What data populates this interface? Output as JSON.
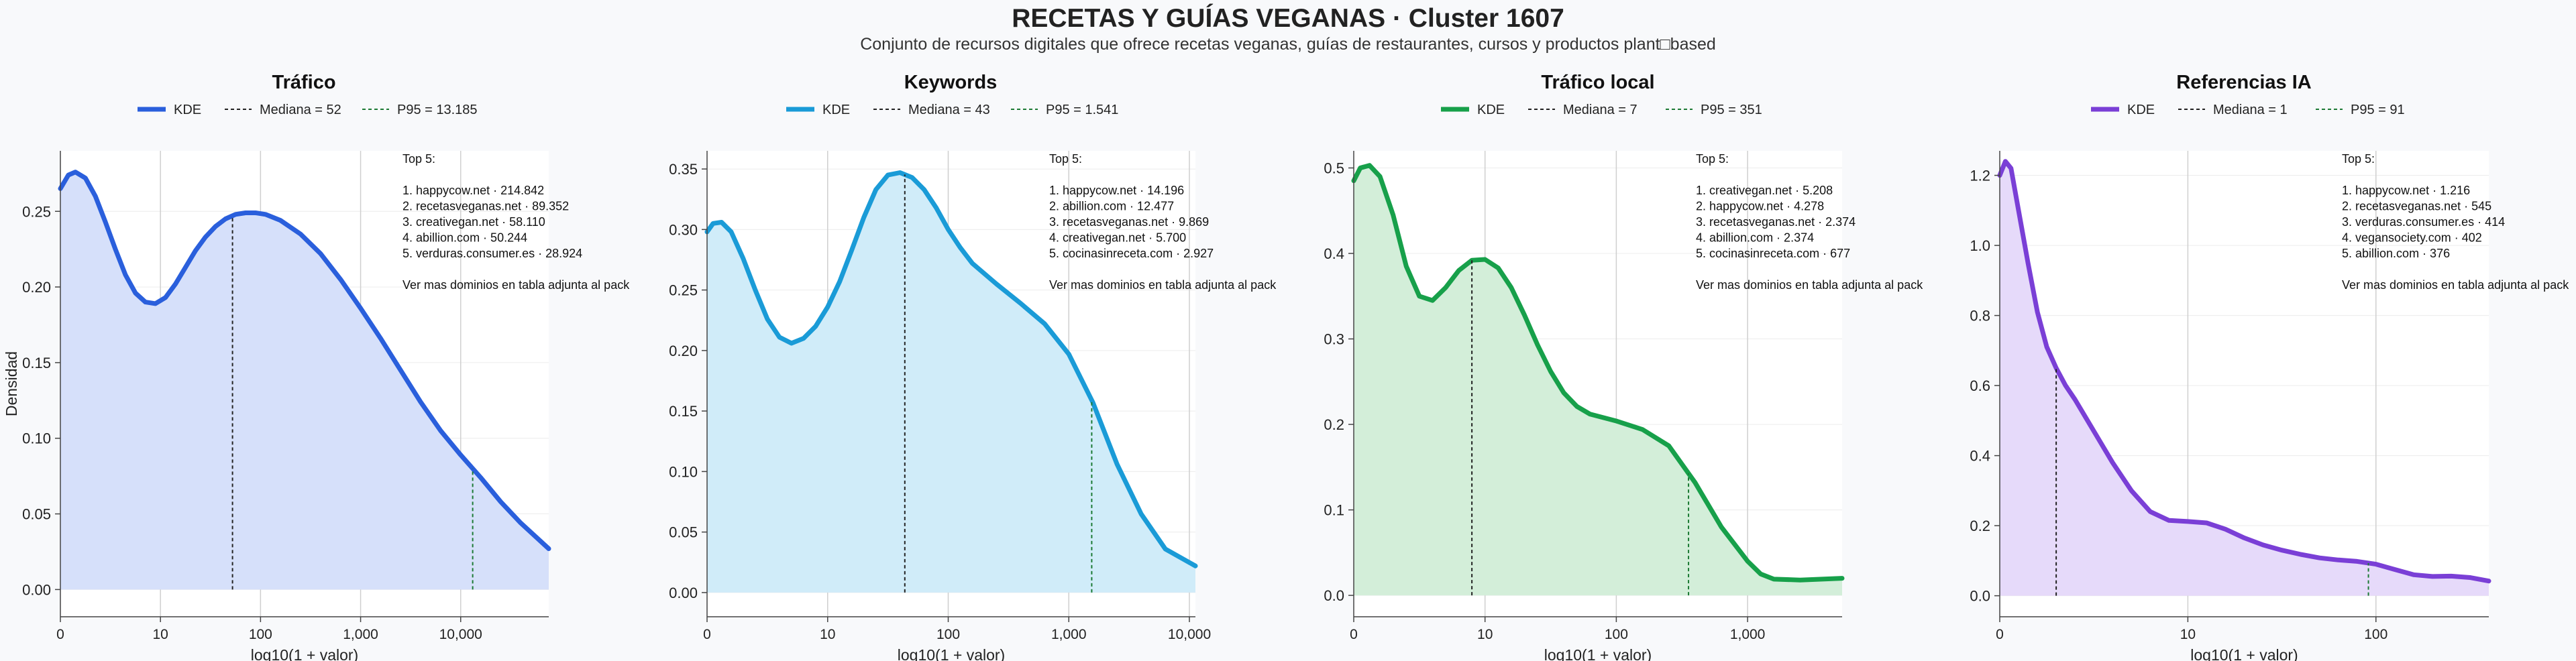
{
  "page": {
    "title": "RECETAS Y GUÍAS VEGANAS · Cluster 1607",
    "subtitle": "Conjunto de recursos digitales que ofrece recetas veganas, guías de restaurantes, cursos y productos plant□based"
  },
  "chart_data": [
    {
      "type": "area",
      "title": "Tráfico",
      "xlabel": "log10(1 + valor)",
      "ylabel": "Densidad",
      "x_scale": "log10(1+x)",
      "xlim": [
        0,
        4.88
      ],
      "ylim": [
        -0.018,
        0.29
      ],
      "xticks": [
        0,
        1,
        2,
        3,
        4
      ],
      "xtick_labels": [
        "0",
        "10",
        "100",
        "1,000",
        "10,000"
      ],
      "yticks": [
        0,
        0.05,
        0.1,
        0.15,
        0.2,
        0.25
      ],
      "ytick_labels": [
        "0.00",
        "0.05",
        "0.10",
        "0.15",
        "0.20",
        "0.25"
      ],
      "legend": {
        "position": "top",
        "kde": "KDE",
        "median": "Mediana = 52",
        "p95": "P95 = 13.185"
      },
      "color": "#2a5fdc",
      "fill": "#d6e0fa",
      "median_x": 1.72,
      "p95_x": 4.12,
      "series": [
        {
          "name": "KDE",
          "x": [
            0,
            0.08,
            0.15,
            0.25,
            0.35,
            0.45,
            0.55,
            0.65,
            0.75,
            0.85,
            0.95,
            1.05,
            1.15,
            1.25,
            1.35,
            1.45,
            1.55,
            1.65,
            1.75,
            1.85,
            1.95,
            2.05,
            2.2,
            2.4,
            2.6,
            2.8,
            3.0,
            3.2,
            3.4,
            3.6,
            3.8,
            4.0,
            4.2,
            4.4,
            4.6,
            4.88
          ],
          "y": [
            0.265,
            0.274,
            0.276,
            0.272,
            0.26,
            0.243,
            0.225,
            0.208,
            0.196,
            0.19,
            0.189,
            0.193,
            0.202,
            0.213,
            0.224,
            0.233,
            0.24,
            0.245,
            0.248,
            0.249,
            0.249,
            0.248,
            0.244,
            0.235,
            0.222,
            0.205,
            0.186,
            0.166,
            0.145,
            0.124,
            0.105,
            0.089,
            0.074,
            0.058,
            0.044,
            0.027
          ]
        }
      ],
      "annotation": [
        "Top 5:",
        "",
        "1. happycow.net · 214.842",
        "2. recetasveganas.net · 89.352",
        "3. creativegan.net · 58.110",
        "4. abillion.com · 50.244",
        "5. verduras.consumer.es · 28.924",
        "",
        "Ver mas dominios en tabla adjunta al pack"
      ]
    },
    {
      "type": "area",
      "title": "Keywords",
      "xlabel": "log10(1 + valor)",
      "ylabel": "",
      "x_scale": "log10(1+x)",
      "xlim": [
        0,
        4.05
      ],
      "ylim": [
        -0.02,
        0.365
      ],
      "xticks": [
        0,
        1,
        2,
        3,
        4
      ],
      "xtick_labels": [
        "0",
        "10",
        "100",
        "1,000",
        "10,000"
      ],
      "yticks": [
        0,
        0.05,
        0.1,
        0.15,
        0.2,
        0.25,
        0.3,
        0.35
      ],
      "ytick_labels": [
        "0.00",
        "0.05",
        "0.10",
        "0.15",
        "0.20",
        "0.25",
        "0.30",
        "0.35"
      ],
      "legend": {
        "position": "top",
        "kde": "KDE",
        "median": "Mediana = 43",
        "p95": "P95 = 1.541"
      },
      "color": "#1a9bd7",
      "fill": "#d0ecf9",
      "median_x": 1.64,
      "p95_x": 3.19,
      "series": [
        {
          "name": "KDE",
          "x": [
            0,
            0.05,
            0.12,
            0.2,
            0.3,
            0.4,
            0.5,
            0.6,
            0.7,
            0.8,
            0.9,
            1.0,
            1.1,
            1.2,
            1.3,
            1.4,
            1.5,
            1.6,
            1.7,
            1.8,
            1.9,
            2.0,
            2.1,
            2.2,
            2.4,
            2.6,
            2.8,
            3.0,
            3.2,
            3.4,
            3.6,
            3.8,
            4.05
          ],
          "y": [
            0.298,
            0.305,
            0.306,
            0.298,
            0.276,
            0.25,
            0.226,
            0.211,
            0.206,
            0.21,
            0.22,
            0.236,
            0.257,
            0.283,
            0.31,
            0.333,
            0.345,
            0.347,
            0.343,
            0.333,
            0.318,
            0.3,
            0.285,
            0.272,
            0.255,
            0.239,
            0.222,
            0.197,
            0.157,
            0.106,
            0.065,
            0.036,
            0.022
          ]
        }
      ],
      "annotation": [
        "Top 5:",
        "",
        "1. happycow.net · 14.196",
        "2. abillion.com · 12.477",
        "3. recetasveganas.net · 9.869",
        "4. creativegan.net · 5.700",
        "5. cocinasinreceta.com · 2.927",
        "",
        "Ver mas dominios en tabla adjunta al pack"
      ]
    },
    {
      "type": "area",
      "title": "Tráfico local",
      "xlabel": "log10(1 + valor)",
      "ylabel": "",
      "x_scale": "log10(1+x)",
      "xlim": [
        0,
        3.72
      ],
      "ylim": [
        -0.025,
        0.52
      ],
      "xticks": [
        0,
        1,
        2,
        3
      ],
      "xtick_labels": [
        "0",
        "10",
        "100",
        "1,000"
      ],
      "yticks": [
        0,
        0.1,
        0.2,
        0.3,
        0.4,
        0.5
      ],
      "ytick_labels": [
        "0.0",
        "0.1",
        "0.2",
        "0.3",
        "0.4",
        "0.5"
      ],
      "legend": {
        "position": "top",
        "kde": "KDE",
        "median": "Mediana = 7",
        "p95": "P95 = 351"
      },
      "color": "#17a04a",
      "fill": "#d3eed9",
      "median_x": 0.9,
      "p95_x": 2.55,
      "series": [
        {
          "name": "KDE",
          "x": [
            0,
            0.05,
            0.12,
            0.2,
            0.3,
            0.4,
            0.5,
            0.6,
            0.7,
            0.8,
            0.9,
            1.0,
            1.1,
            1.2,
            1.3,
            1.4,
            1.5,
            1.6,
            1.7,
            1.8,
            1.9,
            2.0,
            2.2,
            2.4,
            2.6,
            2.8,
            3.0,
            3.1,
            3.2,
            3.4,
            3.72
          ],
          "y": [
            0.485,
            0.5,
            0.503,
            0.49,
            0.445,
            0.385,
            0.35,
            0.345,
            0.36,
            0.38,
            0.392,
            0.393,
            0.383,
            0.36,
            0.328,
            0.293,
            0.262,
            0.237,
            0.221,
            0.212,
            0.208,
            0.204,
            0.194,
            0.175,
            0.132,
            0.08,
            0.04,
            0.025,
            0.019,
            0.018,
            0.02
          ]
        }
      ],
      "annotation": [
        "Top 5:",
        "",
        "1. creativegan.net · 5.208",
        "2. happycow.net · 4.278",
        "3. recetasveganas.net · 2.374",
        "4. abillion.com · 2.374",
        "5. cocinasinreceta.com · 677",
        "",
        "Ver mas dominios en tabla adjunta al pack"
      ]
    },
    {
      "type": "area",
      "title": "Referencias IA",
      "xlabel": "log10(1 + valor)",
      "ylabel": "",
      "x_scale": "log10(1+x)",
      "xlim": [
        0,
        2.6
      ],
      "ylim": [
        -0.06,
        1.27
      ],
      "xticks": [
        0,
        1,
        2
      ],
      "xtick_labels": [
        "0",
        "10",
        "100"
      ],
      "yticks": [
        0,
        0.2,
        0.4,
        0.6,
        0.8,
        1.0,
        1.2
      ],
      "ytick_labels": [
        "0.0",
        "0.2",
        "0.4",
        "0.6",
        "0.8",
        "1.0",
        "1.2"
      ],
      "legend": {
        "position": "top",
        "kde": "KDE",
        "median": "Mediana = 1",
        "p95": "P95 = 91"
      },
      "color": "#7a3fd6",
      "fill": "#e6dafa",
      "median_x": 0.3,
      "p95_x": 1.96,
      "series": [
        {
          "name": "KDE",
          "x": [
            0,
            0.03,
            0.06,
            0.1,
            0.15,
            0.2,
            0.25,
            0.3,
            0.35,
            0.4,
            0.5,
            0.6,
            0.7,
            0.8,
            0.9,
            1.0,
            1.1,
            1.2,
            1.3,
            1.4,
            1.5,
            1.6,
            1.7,
            1.8,
            1.9,
            2.0,
            2.1,
            2.2,
            2.3,
            2.4,
            2.5,
            2.6
          ],
          "y": [
            1.2,
            1.24,
            1.22,
            1.1,
            0.95,
            0.81,
            0.71,
            0.65,
            0.6,
            0.56,
            0.47,
            0.38,
            0.3,
            0.24,
            0.215,
            0.212,
            0.208,
            0.19,
            0.165,
            0.145,
            0.13,
            0.118,
            0.108,
            0.102,
            0.098,
            0.09,
            0.075,
            0.06,
            0.055,
            0.056,
            0.052,
            0.042
          ]
        }
      ],
      "annotation": [
        "Top 5:",
        "",
        "1. happycow.net · 1.216",
        "2. recetasveganas.net · 545",
        "3. verduras.consumer.es · 414",
        "4. vegansociety.com · 402",
        "5. abillion.com · 376",
        "",
        "Ver mas dominios en tabla adjunta al pack"
      ]
    }
  ]
}
